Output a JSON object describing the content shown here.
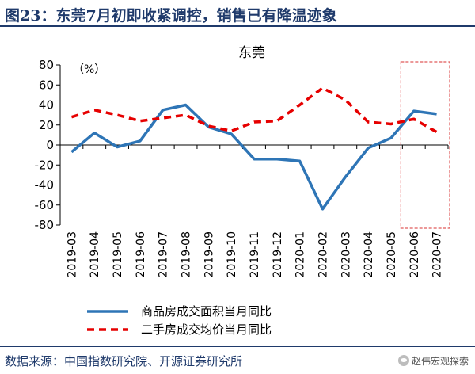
{
  "figure_title": "图23：东莞7月初即收紧调控，销售已有降温迹象",
  "source_text": "数据来源：中国指数研究院、开源证券研究所",
  "watermark_text": "赵伟宏观探索",
  "colors": {
    "title": "#1f3a6b",
    "series_solid": "#2e75b6",
    "series_dashed": "#e60000",
    "highlight_box": "#e05a5a"
  },
  "chart_data": {
    "type": "line",
    "title": "东莞",
    "unit_label": "（%）",
    "categories": [
      "2019-03",
      "2019-04",
      "2019-05",
      "2019-06",
      "2019-07",
      "2019-08",
      "2019-09",
      "2019-10",
      "2019-11",
      "2019-12",
      "2020-01",
      "2020-02",
      "2020-03",
      "2020-04",
      "2020-05",
      "2020-06",
      "2020-07"
    ],
    "series": [
      {
        "name": "商品房成交面积当月同比",
        "style": "solid",
        "values": [
          -7,
          12,
          -2,
          4,
          35,
          40,
          18,
          11,
          -14,
          -14,
          -16,
          -64,
          -32,
          -3,
          7,
          34,
          31
        ]
      },
      {
        "name": "二手房成交均价当月同比",
        "style": "dashed",
        "values": [
          28,
          35,
          30,
          24,
          27,
          30,
          19,
          14,
          23,
          24,
          40,
          57,
          45,
          23,
          21,
          26,
          13
        ]
      }
    ],
    "ylim": [
      -80,
      80
    ],
    "yticks": [
      80,
      60,
      40,
      20,
      0,
      -20,
      -40,
      -60,
      -80
    ],
    "highlight_categories": [
      "2020-06",
      "2020-07"
    ],
    "legend_position": "bottom"
  }
}
